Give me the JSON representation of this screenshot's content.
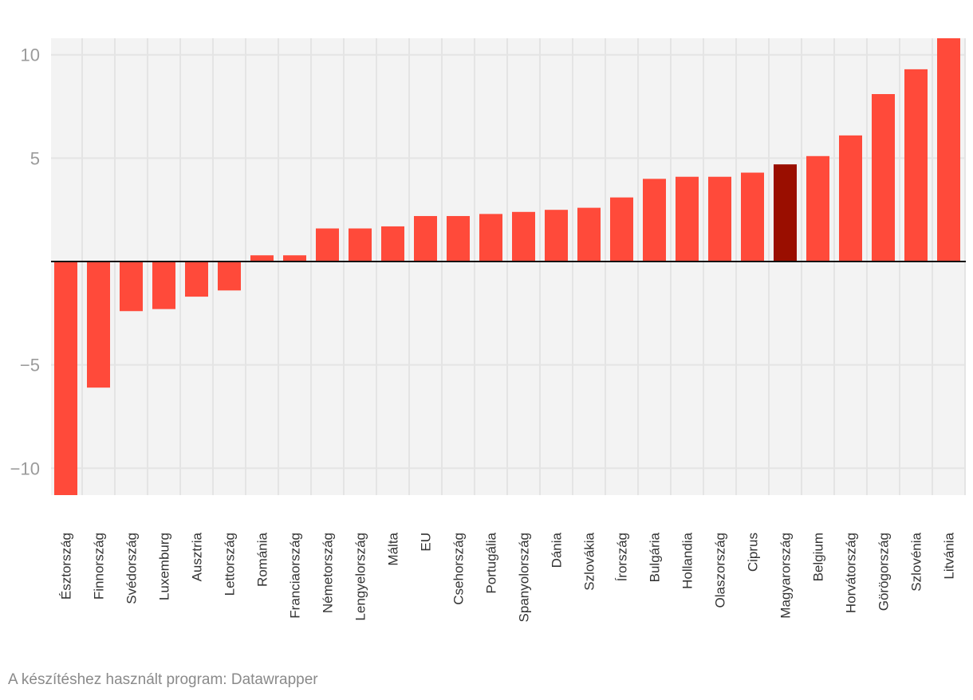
{
  "chart_data": {
    "type": "bar",
    "title": "",
    "xlabel": "",
    "ylabel": "",
    "ylim": [
      -11.3,
      10.8
    ],
    "yticks": [
      10,
      5,
      -5,
      -10
    ],
    "ytick_labels": [
      "10",
      "5",
      "−5",
      "−10"
    ],
    "grid": true,
    "categories": [
      "Észtország",
      "Finnország",
      "Svédország",
      "Luxemburg",
      "Ausztria",
      "Lettország",
      "Románia",
      "Franciaország",
      "Németország",
      "Lengyelország",
      "Málta",
      "EU",
      "Csehország",
      "Portugália",
      "Spanyolország",
      "Dánia",
      "Szlovákia",
      "Írország",
      "Bulgária",
      "Hollandia",
      "Olaszország",
      "Ciprus",
      "Magyarország",
      "Belgium",
      "Horvátország",
      "Görögország",
      "Szlovénia",
      "Litvánia"
    ],
    "values": [
      -11.3,
      -6.1,
      -2.4,
      -2.3,
      -1.7,
      -1.4,
      0.3,
      0.3,
      1.6,
      1.6,
      1.7,
      2.2,
      2.2,
      2.3,
      2.4,
      2.5,
      2.6,
      3.1,
      4.0,
      4.1,
      4.1,
      4.3,
      4.7,
      5.1,
      6.1,
      8.1,
      9.3,
      10.8
    ],
    "highlight": "Magyarország",
    "colors": {
      "bar": "#ff4a3a",
      "highlight": "#9a0e00",
      "plot_bg": "#f3f3f3",
      "grid": "#e4e4e4",
      "zero_line": "#111111",
      "tick_text": "#9b9b9b",
      "category_text": "#333333"
    }
  },
  "footer": {
    "credit": "A készítéshez használt program: Datawrapper"
  }
}
